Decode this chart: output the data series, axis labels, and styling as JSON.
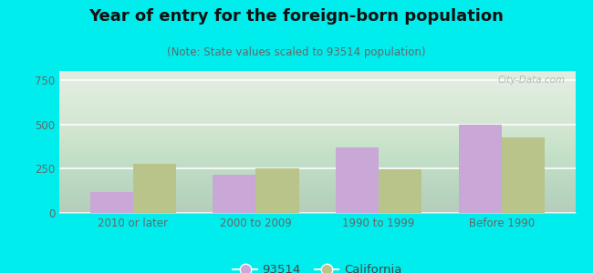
{
  "title": "Year of entry for the foreign-born population",
  "subtitle": "(Note: State values scaled to 93514 population)",
  "categories": [
    "2010 or later",
    "2000 to 2009",
    "1990 to 1999",
    "Before 1990"
  ],
  "values_93514": [
    120,
    215,
    370,
    500
  ],
  "values_california": [
    275,
    250,
    248,
    425
  ],
  "bar_color_93514": "#c9a8d8",
  "bar_color_california": "#b8c48a",
  "background_outer": "#00eded",
  "ylim": [
    0,
    800
  ],
  "yticks": [
    0,
    250,
    500,
    750
  ],
  "bar_width": 0.35,
  "legend_label_93514": "93514",
  "legend_label_california": "California",
  "watermark": "City-Data.com",
  "title_fontsize": 13,
  "subtitle_fontsize": 8.5,
  "tick_fontsize": 8.5,
  "legend_fontsize": 9.5
}
